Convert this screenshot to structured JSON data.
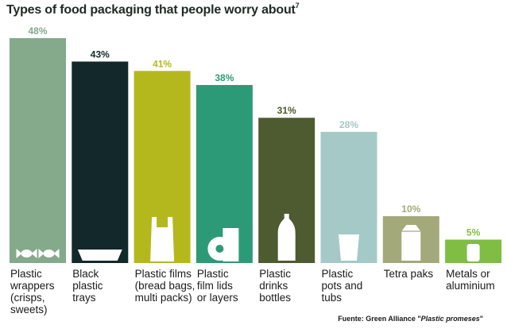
{
  "title": "Types of food packaging that people worry about",
  "title_note": "7",
  "source": {
    "prefix": "Fuente: Green Alliance \"",
    "italic": "Plastic promeses",
    "suffix": "\""
  },
  "chart_data": {
    "type": "bar",
    "title": "Types of food packaging that people worry about",
    "ylim": [
      0,
      48
    ],
    "grid": false,
    "categories": [
      [
        "Plastic",
        "wrappers",
        "(crisps,",
        "sweets)"
      ],
      [
        "Black",
        "plastic",
        "trays"
      ],
      [
        "Plastic films",
        "(bread bags,",
        "multi packs)"
      ],
      [
        "Plastic",
        "film lids",
        "or layers"
      ],
      [
        "Plastic",
        "drinks",
        "bottles"
      ],
      [
        "Plastic",
        "pots and",
        "tubs"
      ],
      [
        "Tetra paks"
      ],
      [
        "Metals or",
        "aluminium"
      ]
    ],
    "values": [
      48,
      43,
      41,
      38,
      31,
      28,
      10,
      5
    ],
    "value_labels": [
      "48%",
      "43%",
      "41%",
      "38%",
      "31%",
      "28%",
      "10%",
      "5%"
    ],
    "colors": [
      "#84a98b",
      "#12282a",
      "#b5b81d",
      "#2d9a77",
      "#4e5a2f",
      "#a5c9c6",
      "#a3a97a",
      "#7fbd43"
    ],
    "label_colors": [
      "#84a98b",
      "#12282a",
      "#b5b81d",
      "#2d9a77",
      "#4e5a2f",
      "#a5c9c6",
      "#a3a97a",
      "#7fbd43"
    ],
    "icons": [
      "wrapped-sweets-icon",
      "tray-icon",
      "carrier-bag-icon",
      "film-roll-icon",
      "bottle-icon",
      "tub-icon",
      "carton-icon",
      "can-icon"
    ]
  }
}
